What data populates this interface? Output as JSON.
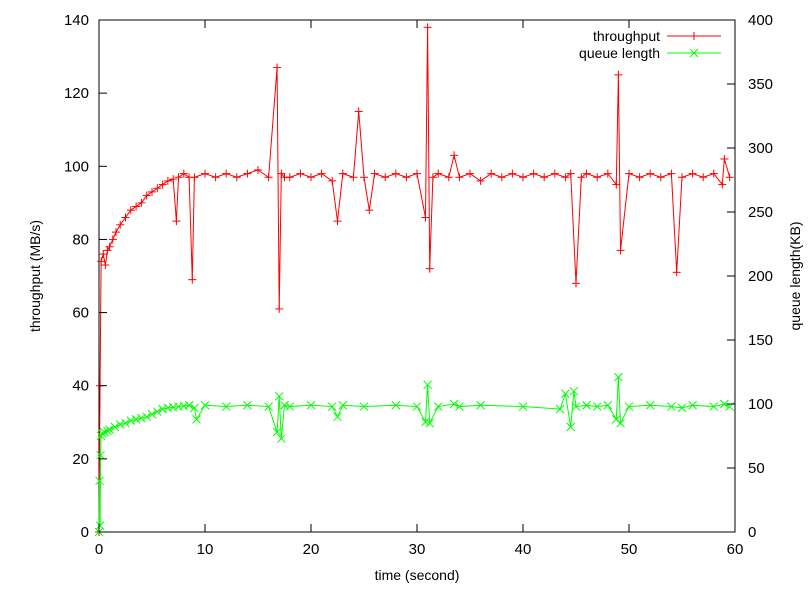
{
  "chart_data": {
    "type": "line",
    "title": "",
    "xlabel": "time (second)",
    "ylabel": "throughput (MB/s)",
    "y2label": "queue length(KB)",
    "xlim": [
      0,
      60
    ],
    "ylim": [
      0,
      140
    ],
    "y2lim": [
      0,
      400
    ],
    "xticks": [
      0,
      10,
      20,
      30,
      40,
      50,
      60
    ],
    "yticks": [
      0,
      20,
      40,
      60,
      80,
      100,
      120,
      140
    ],
    "y2ticks": [
      0,
      50,
      100,
      150,
      200,
      250,
      300,
      350,
      400
    ],
    "grid": false,
    "legend_position": "top-right",
    "series": [
      {
        "name": "throughput",
        "axis": "left",
        "color": "#ff0000",
        "marker": "plus",
        "x": [
          0,
          0.1,
          0.2,
          0.4,
          0.6,
          0.8,
          1.0,
          1.3,
          1.6,
          2.0,
          2.5,
          3.0,
          3.5,
          4.0,
          4.5,
          5.0,
          5.5,
          6.0,
          6.5,
          7.0,
          7.3,
          7.5,
          8.0,
          8.5,
          8.8,
          9.0,
          10,
          11,
          12,
          13,
          14,
          15,
          16,
          16.8,
          17.0,
          17.2,
          17.5,
          18,
          19,
          20,
          21,
          22,
          22.5,
          23,
          24,
          24.5,
          25,
          25.5,
          26,
          27,
          28,
          29,
          30,
          30.8,
          31.0,
          31.2,
          31.5,
          32,
          33,
          33.5,
          34,
          35,
          36,
          37,
          38,
          39,
          40,
          41,
          42,
          43,
          44,
          44.5,
          45,
          45.5,
          46,
          47,
          48,
          48.8,
          49.0,
          49.2,
          50,
          51,
          52,
          53,
          54,
          54.5,
          55,
          56,
          57,
          58,
          58.8,
          59.0,
          59.5
        ],
        "y": [
          0,
          40,
          74,
          76,
          73,
          77,
          78,
          80,
          82,
          84,
          86,
          88,
          89,
          90,
          92,
          93,
          94,
          95,
          96,
          96.5,
          85,
          97,
          98,
          97,
          69,
          97,
          98,
          97,
          98,
          97,
          98,
          99,
          97,
          127,
          61,
          98,
          97,
          97,
          98,
          97,
          98,
          96,
          85,
          98,
          97,
          115,
          97,
          88,
          98,
          97,
          98,
          97,
          98,
          86,
          138,
          72,
          97,
          98,
          97,
          103,
          97,
          98,
          96,
          98,
          97,
          98,
          97,
          98,
          97,
          98,
          97,
          98,
          68,
          97,
          98,
          97,
          98,
          95,
          125,
          77,
          98,
          97,
          98,
          97,
          98,
          71,
          97,
          98,
          97,
          98,
          95,
          102,
          97
        ]
      },
      {
        "name": "queue length",
        "axis": "right",
        "color": "#00ff00",
        "marker": "cross",
        "x": [
          0,
          0.05,
          0.1,
          0.15,
          0.2,
          0.3,
          0.5,
          0.8,
          1.0,
          1.5,
          2.0,
          2.5,
          3.0,
          3.5,
          4.0,
          4.5,
          5.0,
          5.5,
          6.0,
          6.5,
          7.0,
          7.5,
          8.0,
          8.5,
          9.0,
          9.2,
          10,
          12,
          14,
          16,
          16.8,
          17.0,
          17.2,
          17.5,
          18,
          20,
          22,
          22.5,
          23,
          25,
          28,
          30,
          30.8,
          31.0,
          31.2,
          32,
          33.5,
          34,
          36,
          40,
          43.5,
          44.0,
          44.5,
          44.8,
          45,
          46,
          47,
          48,
          48.8,
          49.0,
          49.2,
          50,
          52,
          54,
          55,
          56,
          58,
          59,
          59.5
        ],
        "y": [
          0,
          40,
          5,
          60,
          75,
          77,
          78,
          79,
          80,
          82,
          84,
          85,
          87,
          88,
          89,
          90,
          92,
          94,
          96,
          97,
          97.5,
          98,
          98.5,
          99,
          97,
          88,
          99,
          98,
          99,
          98,
          78,
          106,
          73,
          99,
          98,
          99,
          98,
          90,
          99,
          98,
          99,
          98,
          86,
          115,
          85,
          98,
          100,
          98,
          99,
          98,
          96,
          108,
          82,
          110,
          98,
          99,
          98,
          99,
          88,
          121,
          85,
          98,
          99,
          98,
          97,
          99,
          98,
          100,
          98
        ]
      }
    ]
  }
}
